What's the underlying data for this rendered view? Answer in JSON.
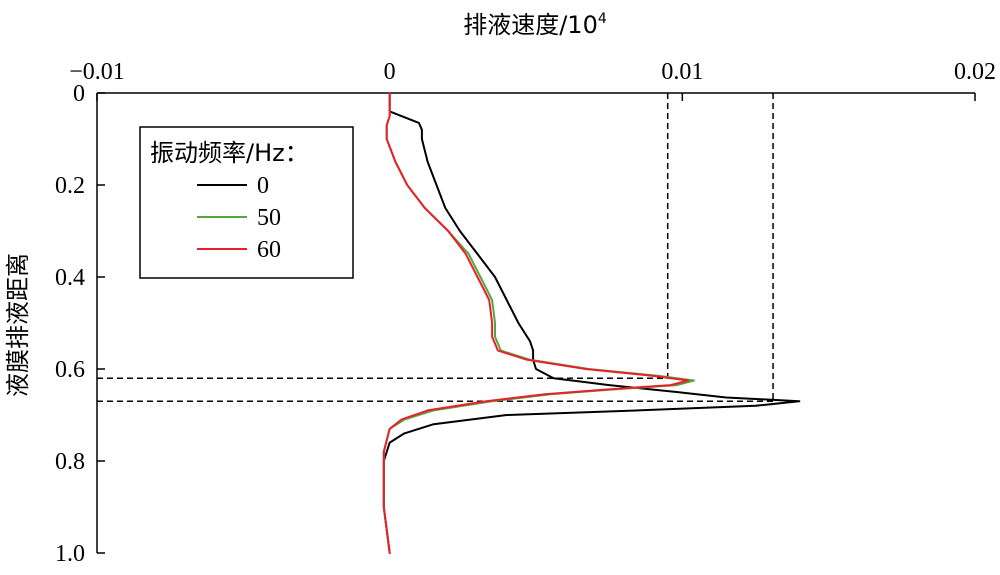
{
  "chart_data": {
    "type": "line",
    "title": "",
    "xlabel": "排液速度/10",
    "xlabel_sup": "4",
    "ylabel": "液膜排液距离",
    "xlim": [
      -0.01,
      0.02
    ],
    "ylim": [
      0,
      1.0
    ],
    "x_axis_position": "top",
    "y_inverted": true,
    "x_ticks": [
      "−0.01",
      "0",
      "0.01",
      "0.02"
    ],
    "x_tick_values": [
      -0.01,
      0,
      0.01,
      0.02
    ],
    "y_ticks": [
      "0",
      "0.2",
      "0.4",
      "0.6",
      "0.8",
      "1.0"
    ],
    "y_tick_values": [
      0,
      0.2,
      0.4,
      0.6,
      0.8,
      1.0
    ],
    "grid": false,
    "legend": {
      "title": "振动频率/Hz：",
      "placement": "upper-left"
    },
    "series": [
      {
        "name": "0",
        "color": "#000000",
        "points": [
          [
            0.0,
            0.0
          ],
          [
            0.0,
            0.04
          ],
          [
            0.0006,
            0.055
          ],
          [
            0.001,
            0.065
          ],
          [
            0.0011,
            0.08
          ],
          [
            0.0011,
            0.1
          ],
          [
            0.0013,
            0.15
          ],
          [
            0.0016,
            0.2
          ],
          [
            0.0019,
            0.25
          ],
          [
            0.0024,
            0.3
          ],
          [
            0.003,
            0.35
          ],
          [
            0.0036,
            0.4
          ],
          [
            0.004,
            0.45
          ],
          [
            0.0044,
            0.5
          ],
          [
            0.0048,
            0.54
          ],
          [
            0.0049,
            0.56
          ],
          [
            0.0049,
            0.58
          ],
          [
            0.005,
            0.6
          ],
          [
            0.0056,
            0.62
          ],
          [
            0.0075,
            0.635
          ],
          [
            0.0098,
            0.65
          ],
          [
            0.0115,
            0.662
          ],
          [
            0.014,
            0.67
          ],
          [
            0.0125,
            0.68
          ],
          [
            0.0085,
            0.69
          ],
          [
            0.004,
            0.7
          ],
          [
            0.0015,
            0.72
          ],
          [
            0.0005,
            0.74
          ],
          [
            0.0,
            0.76
          ],
          [
            -0.0002,
            0.8
          ],
          [
            -0.0002,
            0.9
          ],
          [
            0.0,
            1.0
          ]
        ]
      },
      {
        "name": "50",
        "color": "#55a640",
        "points": [
          [
            0.0,
            0.0
          ],
          [
            0.0,
            0.05
          ],
          [
            -0.0001,
            0.07
          ],
          [
            -0.0001,
            0.1
          ],
          [
            0.0002,
            0.15
          ],
          [
            0.0006,
            0.2
          ],
          [
            0.0012,
            0.25
          ],
          [
            0.002,
            0.3
          ],
          [
            0.0027,
            0.35
          ],
          [
            0.0031,
            0.4
          ],
          [
            0.0035,
            0.45
          ],
          [
            0.0036,
            0.5
          ],
          [
            0.0036,
            0.53
          ],
          [
            0.0038,
            0.56
          ],
          [
            0.0048,
            0.58
          ],
          [
            0.0068,
            0.6
          ],
          [
            0.0092,
            0.615
          ],
          [
            0.0104,
            0.625
          ],
          [
            0.0098,
            0.635
          ],
          [
            0.0075,
            0.645
          ],
          [
            0.0055,
            0.655
          ],
          [
            0.0035,
            0.67
          ],
          [
            0.0015,
            0.69
          ],
          [
            0.0005,
            0.71
          ],
          [
            0.0,
            0.73
          ],
          [
            -0.0002,
            0.78
          ],
          [
            -0.0002,
            0.9
          ],
          [
            0.0,
            1.0
          ]
        ]
      },
      {
        "name": "60",
        "color": "#e8202a",
        "points": [
          [
            0.0,
            0.0
          ],
          [
            0.0,
            0.05
          ],
          [
            -0.0001,
            0.07
          ],
          [
            -0.0001,
            0.1
          ],
          [
            0.0002,
            0.15
          ],
          [
            0.0006,
            0.2
          ],
          [
            0.0012,
            0.25
          ],
          [
            0.002,
            0.3
          ],
          [
            0.0026,
            0.35
          ],
          [
            0.003,
            0.4
          ],
          [
            0.0034,
            0.45
          ],
          [
            0.0035,
            0.5
          ],
          [
            0.0035,
            0.53
          ],
          [
            0.0037,
            0.56
          ],
          [
            0.0047,
            0.58
          ],
          [
            0.0067,
            0.6
          ],
          [
            0.009,
            0.615
          ],
          [
            0.0102,
            0.625
          ],
          [
            0.0096,
            0.635
          ],
          [
            0.0073,
            0.645
          ],
          [
            0.0053,
            0.655
          ],
          [
            0.0033,
            0.67
          ],
          [
            0.0013,
            0.69
          ],
          [
            0.0004,
            0.71
          ],
          [
            0.0,
            0.73
          ],
          [
            -0.0002,
            0.78
          ],
          [
            -0.0002,
            0.9
          ],
          [
            0.0,
            1.0
          ]
        ]
      }
    ],
    "reference_lines": [
      {
        "orientation": "vertical",
        "x": 0.0095,
        "y_from": 0.0,
        "y_to": 0.62
      },
      {
        "orientation": "vertical",
        "x": 0.0131,
        "y_from": 0.0,
        "y_to": 0.67
      },
      {
        "orientation": "horizontal",
        "y": 0.62,
        "x_from": -0.01,
        "x_to": 0.0095
      },
      {
        "orientation": "horizontal",
        "y": 0.67,
        "x_from": -0.01,
        "x_to": 0.0131
      }
    ]
  }
}
